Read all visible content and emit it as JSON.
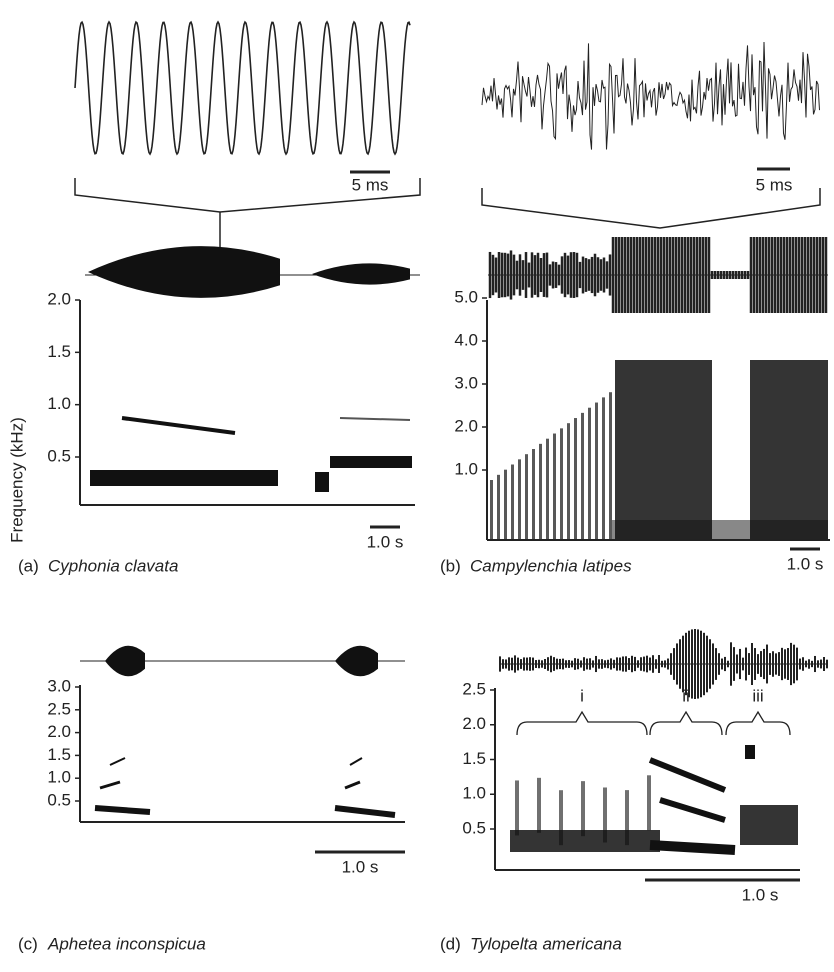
{
  "y_axis_label": "Frequency (kHz)",
  "panels": [
    {
      "letter": "(a)",
      "species": "Cyphonia clavata",
      "oscillogram_scale": "5 ms",
      "time_scale": "1.0 s",
      "yticks": [
        "2.0",
        "1.5",
        "1.0",
        "0.5"
      ]
    },
    {
      "letter": "(b)",
      "species": "Campylenchia latipes",
      "oscillogram_scale": "5 ms",
      "time_scale": "1.0 s",
      "yticks": [
        "5.0",
        "4.0",
        "3.0",
        "2.0",
        "1.0"
      ]
    },
    {
      "letter": "(c)",
      "species": "Aphetea inconspicua",
      "time_scale": "1.0 s",
      "yticks": [
        "3.0",
        "2.5",
        "2.0",
        "1.5",
        "1.0",
        "0.5"
      ]
    },
    {
      "letter": "(d)",
      "species": "Tylopelta americana",
      "time_scale": "1.0 s",
      "yticks": [
        "2.5",
        "2.0",
        "1.5",
        "1.0",
        "0.5"
      ],
      "sections": [
        "i",
        "ii",
        "iii"
      ]
    }
  ]
}
